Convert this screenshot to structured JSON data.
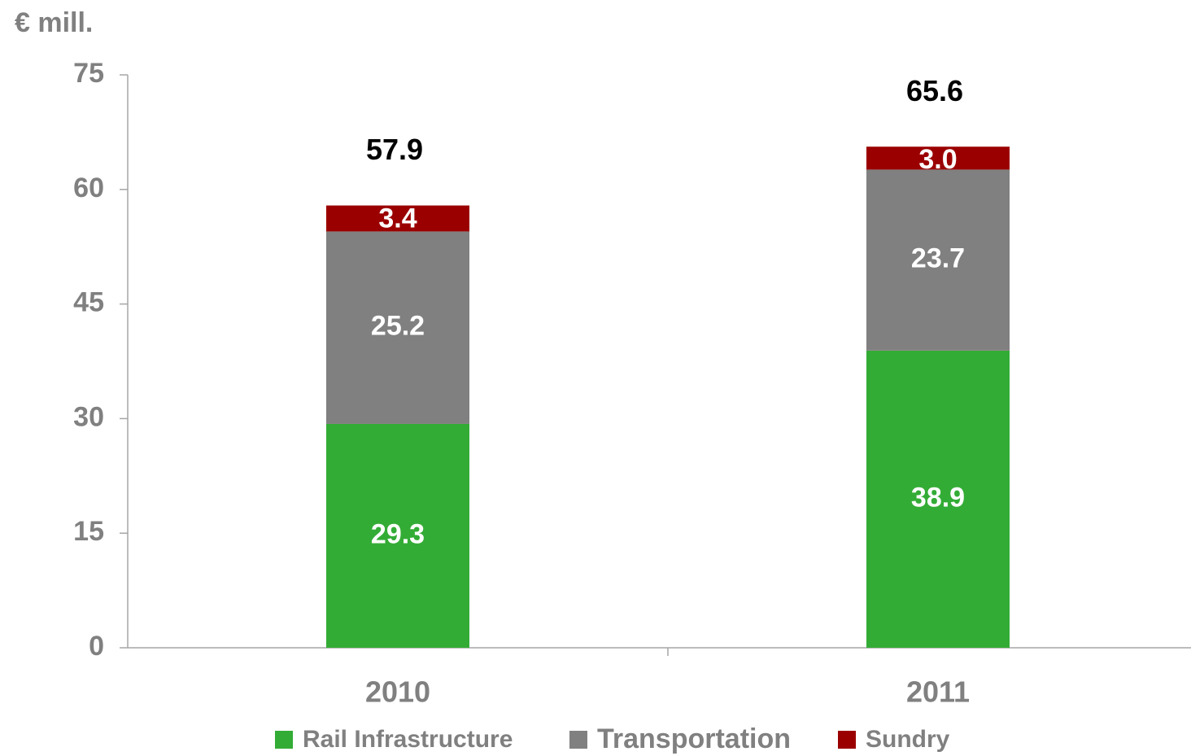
{
  "chart_data": {
    "type": "stacked-bar",
    "y_label": "€ mill.",
    "categories": [
      "2010",
      "2011"
    ],
    "series": [
      {
        "name": "Rail Infrastructure",
        "color": "#33ac35",
        "values": [
          29.3,
          38.9
        ]
      },
      {
        "name": "Transportation",
        "color": "#808080",
        "values": [
          25.2,
          23.7
        ]
      },
      {
        "name": "Sundry",
        "color": "#9b0000",
        "values": [
          3.4,
          3.0
        ],
        "value_labels": [
          "3.4",
          "3.0"
        ]
      }
    ],
    "totals": [
      57.9,
      65.6
    ],
    "ylim": [
      0,
      75
    ],
    "yticks": [
      0,
      15,
      30,
      45,
      60,
      75
    ],
    "legend": "bottom"
  }
}
